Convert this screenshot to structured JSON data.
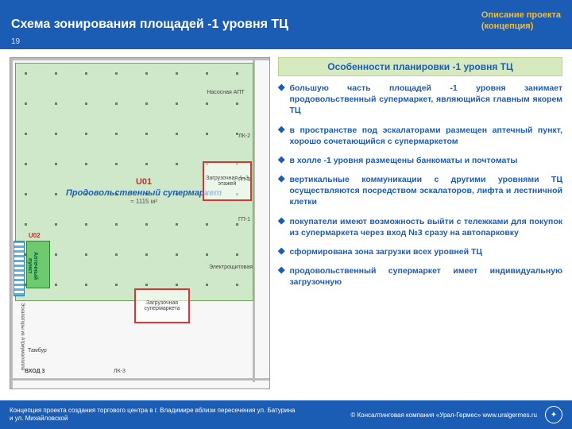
{
  "header": {
    "title": "Схема зонирования площадей -1 уровня ТЦ",
    "section_line1": "Описание проекта",
    "section_line2": "(концепция)",
    "page_number": "19"
  },
  "plan": {
    "main_unit_code": "U01",
    "main_unit_name": "Продовольственный супермаркет",
    "main_unit_area": "≈ 1115 м²",
    "pharmacy_code": "U02",
    "pharmacy_label": "Аптечный пункт",
    "escalator_label": "Эскалаторы из Атриума/холла",
    "rooms": {
      "pump": "Насосная АПТ",
      "lk2": "ЛК-2",
      "zone_1_3": "Загрузочная 1–3 этажей",
      "gp3": "ГП-3",
      "gp1": "ГП-1",
      "electro": "Электрощитовая",
      "loading": "Загрузочная супермаркета",
      "tambur": "Тамбур",
      "exit3": "ВХОД 3",
      "lk3": "ЛК-3"
    },
    "colors": {
      "supermarket_fill": "#cfe8c9",
      "supermarket_border": "#6fa05e",
      "pharmacy_fill": "#6fc96f",
      "escalator_stripe": "#4db6e2",
      "loading_border": "#d33"
    }
  },
  "features": {
    "title": "Особенности планировки -1 уровня ТЦ",
    "items": [
      "большую часть площадей -1 уровня занимает продовольственный супермаркет, являющийся главным якорем ТЦ",
      "в пространстве под эскалаторами размещен аптечный пункт, хорошо сочетающийся с супермаркетом",
      "в холле -1 уровня размещены банкоматы и почтоматы",
      "вертикальные коммуникации с другими уровнями ТЦ осуществляются посредством эскалаторов, лифта и лестничной клетки",
      "покупатели имеют возможность выйти с тележками для покупок из супермаркета через вход №3 сразу на автопарковку",
      "сформирована зона загрузки всех уровней ТЦ",
      "продовольственный супермаркет имеет индивидуальную загрузочную"
    ]
  },
  "footer": {
    "left": "Концепция проекта создания торгового центра в г. Владимире вблизи пересечения ул. Батурина и ул. Михайловской",
    "right": "© Консалтинговая компания «Урал-Гермес» www.uralgermes.ru"
  },
  "style": {
    "accent": "#1b5db4",
    "accent_yellow": "#f2be3a",
    "feature_bg": "#d7e9be"
  }
}
